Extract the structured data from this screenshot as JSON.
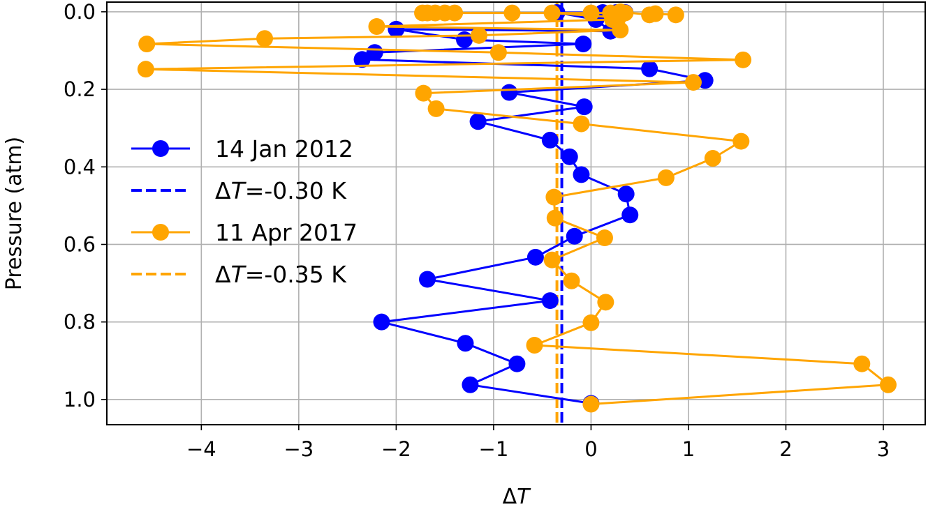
{
  "chart_data": {
    "type": "line",
    "xlabel": "ΔT",
    "ylabel": "Pressure (atm)",
    "xlim": [
      -4.97,
      3.43
    ],
    "ylim": [
      1.065,
      -0.025
    ],
    "y_inverted": true,
    "grid": true,
    "legend_placement": "center-left",
    "x_ticks": [
      -4,
      -3,
      -2,
      -1,
      0,
      1,
      2,
      3
    ],
    "x_tick_labels": [
      "−4",
      "−3",
      "−2",
      "−1",
      "0",
      "1",
      "2",
      "3"
    ],
    "y_ticks": [
      0.0,
      0.2,
      0.4,
      0.6,
      0.8,
      1.0
    ],
    "y_tick_labels": [
      "0.0",
      "0.2",
      "0.4",
      "0.6",
      "0.8",
      "1.0"
    ],
    "series": [
      {
        "name": "14 Jan 2012",
        "color": "#0000ff",
        "points": [
          [
            0.35,
            0.002
          ],
          [
            0.26,
            0.002
          ],
          [
            0.12,
            0.002
          ],
          [
            -0.35,
            0.002
          ],
          [
            0.05,
            0.02
          ],
          [
            0.2,
            0.05
          ],
          [
            -2.0,
            0.045
          ],
          [
            -1.3,
            0.072
          ],
          [
            -0.08,
            0.083
          ],
          [
            -2.22,
            0.105
          ],
          [
            -2.35,
            0.123
          ],
          [
            0.6,
            0.147
          ],
          [
            1.17,
            0.177
          ],
          [
            -0.84,
            0.208
          ],
          [
            -0.07,
            0.245
          ],
          [
            -1.16,
            0.283
          ],
          [
            -0.42,
            0.331
          ],
          [
            -0.22,
            0.374
          ],
          [
            -0.1,
            0.42
          ],
          [
            0.36,
            0.47
          ],
          [
            0.4,
            0.524
          ],
          [
            -0.17,
            0.579
          ],
          [
            -0.57,
            0.633
          ],
          [
            -1.68,
            0.69
          ],
          [
            -0.42,
            0.745
          ],
          [
            -2.15,
            0.8
          ],
          [
            -1.29,
            0.855
          ],
          [
            -0.76,
            0.908
          ],
          [
            -1.24,
            0.962
          ],
          [
            0.0,
            1.01
          ]
        ]
      },
      {
        "name": "ΔT=-0.30 K",
        "color": "#0000ff",
        "style": "dashed",
        "x_value": -0.3
      },
      {
        "name": "11 Apr 2017",
        "color": "#ffa500",
        "points": [
          [
            0.87,
            0.008
          ],
          [
            0.66,
            0.005
          ],
          [
            0.6,
            0.008
          ],
          [
            0.3,
            0.0
          ],
          [
            0.35,
            0.003
          ],
          [
            0.2,
            0.003
          ],
          [
            -1.4,
            0.003
          ],
          [
            -1.5,
            0.003
          ],
          [
            -1.6,
            0.003
          ],
          [
            -1.68,
            0.003
          ],
          [
            -1.73,
            0.003
          ],
          [
            0.0,
            0.003
          ],
          [
            -0.81,
            0.003
          ],
          [
            -0.4,
            0.003
          ],
          [
            0.28,
            0.015
          ],
          [
            0.22,
            0.02
          ],
          [
            -2.2,
            0.038
          ],
          [
            0.3,
            0.047
          ],
          [
            -1.15,
            0.061
          ],
          [
            -3.35,
            0.069
          ],
          [
            -4.56,
            0.083
          ],
          [
            -0.95,
            0.105
          ],
          [
            1.56,
            0.124
          ],
          [
            -4.57,
            0.148
          ],
          [
            1.05,
            0.182
          ],
          [
            -1.72,
            0.21
          ],
          [
            -1.59,
            0.25
          ],
          [
            -0.1,
            0.289
          ],
          [
            1.54,
            0.334
          ],
          [
            1.25,
            0.378
          ],
          [
            0.77,
            0.428
          ],
          [
            -0.38,
            0.478
          ],
          [
            -0.37,
            0.532
          ],
          [
            0.14,
            0.583
          ],
          [
            -0.4,
            0.64
          ],
          [
            -0.2,
            0.694
          ],
          [
            0.15,
            0.749
          ],
          [
            0.0,
            0.802
          ],
          [
            -0.58,
            0.86
          ],
          [
            2.78,
            0.908
          ],
          [
            3.05,
            0.962
          ],
          [
            0.0,
            1.012
          ]
        ]
      },
      {
        "name": "ΔT=-0.35 K",
        "color": "#ffa500",
        "style": "dashed",
        "x_value": -0.35
      }
    ]
  },
  "legend": {
    "entries": [
      {
        "kind": "marker",
        "color": "#0000ff",
        "prefix": "",
        "italic": "",
        "suffix": "14 Jan 2012"
      },
      {
        "kind": "dashed",
        "color": "#0000ff",
        "prefix": "Δ",
        "italic": "T",
        "suffix": "=-0.30 K"
      },
      {
        "kind": "marker",
        "color": "#ffa500",
        "prefix": "",
        "italic": "",
        "suffix": "11 Apr 2017"
      },
      {
        "kind": "dashed",
        "color": "#ffa500",
        "prefix": "Δ",
        "italic": "T",
        "suffix": "=-0.35 K"
      }
    ]
  },
  "axes_text": {
    "xlabel_prefix": "Δ",
    "xlabel_italic": "T",
    "ylabel": "Pressure (atm)"
  },
  "colors": {
    "grid": "#b0b0b0",
    "axes": "#000000"
  }
}
